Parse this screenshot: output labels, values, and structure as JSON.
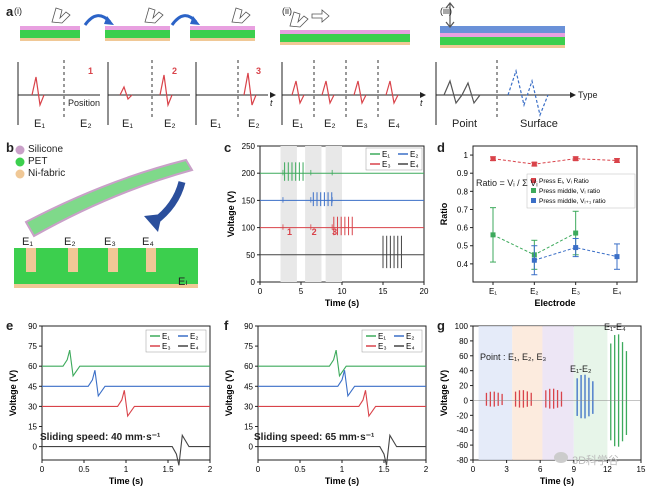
{
  "panel_letters": {
    "a": "a",
    "b": "b",
    "c": "c",
    "d": "d",
    "e": "e",
    "f": "f",
    "g": "g"
  },
  "panel_a": {
    "roman": [
      "(i)",
      "(ii)",
      "(iii)"
    ],
    "press_numbers": [
      "1",
      "2",
      "3"
    ],
    "x_label_position": "Position",
    "x_label_t1": "t",
    "x_label_t2": "t",
    "x_label_type": "Type",
    "electrodes_i": [
      "E₁",
      "E₂",
      "E₁",
      "E₂",
      "E₁",
      "E₂"
    ],
    "electrodes_ii": [
      "E₁",
      "E₂",
      "E₃",
      "E₄"
    ],
    "types": [
      "Point",
      "Surface"
    ]
  },
  "panel_b": {
    "legend": [
      "Silicone",
      "PET",
      "Ni-fabric"
    ],
    "colors": {
      "silicone": "#c9a0c8",
      "pet": "#3ccf4e",
      "ni": "#f0c896"
    },
    "electrodes": [
      "E₁",
      "E₂",
      "E₃",
      "E₄"
    ],
    "el": "Eₗ"
  },
  "panel_c": {
    "ylabel": "Voltage (V)",
    "xlabel": "Time (s)",
    "legend": [
      "E₁",
      "E₂",
      "E₃",
      "E₄"
    ],
    "press_labels": [
      "1",
      "2",
      "3"
    ]
  },
  "panel_d": {
    "ylabel": "Ratio",
    "xlabel": "Electrode",
    "equation": "Ratio = Vᵢ / Σ Vᵢ",
    "legend": [
      "Press Eᵢ, Vᵢ Ratio",
      "Press middle, Vᵢ ratio",
      "Press middle, Vᵢ₊₁ ratio"
    ]
  },
  "panel_e": {
    "ylabel": "Voltage (V)",
    "xlabel": "Time (s)",
    "caption": "Sliding speed: 40 mm·s⁻¹",
    "legend": [
      "E₁",
      "E₂",
      "E₃",
      "E₄"
    ]
  },
  "panel_f": {
    "ylabel": "Voltage (V)",
    "xlabel": "Time (s)",
    "caption": "Sliding speed: 65 mm·s⁻¹",
    "legend": [
      "E₁",
      "E₂",
      "E₃",
      "E₄"
    ]
  },
  "panel_g": {
    "ylabel": "Voltage (V)",
    "xlabel": "Time (s)",
    "point_label": "Point : E₁, E₂, E₃",
    "e1e2": "E₁-E₂",
    "e1e4": "E₁-E₄"
  },
  "watermark": "3D科学谷",
  "chart_data": [
    {
      "type": "line",
      "ylabel": "Voltage (V)",
      "xlabel": "Time (s)",
      "xlim": [
        0,
        20
      ],
      "ylim": [
        0,
        250
      ],
      "x_ticks": [
        0,
        5,
        10,
        15,
        20
      ],
      "y_ticks": [
        0,
        50,
        100,
        150,
        200,
        250
      ],
      "series": [
        {
          "name": "E₁",
          "color": "#3daa5c",
          "baseline": 200
        },
        {
          "name": "E₂",
          "color": "#3b6fc7",
          "baseline": 150
        },
        {
          "name": "E₃",
          "color": "#d9434a",
          "baseline": 100
        },
        {
          "name": "E₄",
          "color": "#444444",
          "baseline": 50
        }
      ]
    },
    {
      "type": "scatter",
      "ylabel": "Ratio",
      "xlabel": "Electrode",
      "ylim": [
        0.3,
        1.05
      ],
      "categories": [
        "E₁",
        "E₂",
        "E₃",
        "E₄"
      ],
      "y_ticks": [
        0.4,
        0.5,
        0.6,
        0.7,
        0.8,
        0.9,
        1.0
      ],
      "series": [
        {
          "name": "Press Eᵢ, Vᵢ Ratio",
          "color": "#d9434a",
          "values": [
            0.98,
            0.95,
            0.98,
            0.97
          ],
          "err": [
            0.01,
            0.01,
            0.01,
            0.01
          ]
        },
        {
          "name": "Press middle, Vᵢ ratio",
          "color": "#3daa5c",
          "values": [
            0.56,
            0.45,
            0.57,
            null
          ],
          "err": [
            0.15,
            0.08,
            0.12,
            0
          ]
        },
        {
          "name": "Press middle, Vᵢ₊₁ ratio",
          "color": "#3b6fc7",
          "values": [
            null,
            0.42,
            0.49,
            0.44
          ],
          "err": [
            0,
            0.08,
            0.05,
            0.07
          ]
        }
      ]
    },
    {
      "type": "line",
      "ylabel": "Voltage (V)",
      "xlabel": "Time (s)",
      "xlim": [
        0,
        2.0
      ],
      "ylim": [
        -10,
        90
      ],
      "x_ticks": [
        0,
        0.5,
        1.0,
        1.5,
        2.0
      ],
      "y_ticks": [
        0,
        15,
        30,
        45,
        60,
        75,
        90
      ],
      "series": [
        {
          "name": "E₁",
          "color": "#3daa5c",
          "baseline": 60,
          "event": 0.3
        },
        {
          "name": "E₂",
          "color": "#3b6fc7",
          "baseline": 45,
          "event": 0.6
        },
        {
          "name": "E₃",
          "color": "#d9434a",
          "baseline": 30,
          "event": 0.95
        },
        {
          "name": "E₄",
          "color": "#444444",
          "baseline": 0,
          "event": 1.6
        }
      ]
    },
    {
      "type": "line",
      "ylabel": "Voltage (V)",
      "xlabel": "Time (s)",
      "xlim": [
        0,
        2.0
      ],
      "ylim": [
        -10,
        90
      ],
      "x_ticks": [
        0,
        0.5,
        1.0,
        1.5,
        2.0
      ],
      "y_ticks": [
        0,
        15,
        30,
        45,
        60,
        75,
        90
      ],
      "series": [
        {
          "name": "E₁",
          "color": "#3daa5c",
          "baseline": 60,
          "event": 0.9
        },
        {
          "name": "E₂",
          "color": "#3b6fc7",
          "baseline": 45,
          "event": 1.0
        },
        {
          "name": "E₃",
          "color": "#d9434a",
          "baseline": 30,
          "event": 1.25
        },
        {
          "name": "E₄",
          "color": "#444444",
          "baseline": 0,
          "event": 1.5
        }
      ]
    },
    {
      "type": "bar",
      "ylabel": "Voltage (V)",
      "xlabel": "Time (s)",
      "xlim": [
        0,
        15
      ],
      "ylim": [
        -80,
        100
      ],
      "x_ticks": [
        0,
        3,
        6,
        9,
        12,
        15
      ],
      "y_ticks": [
        -80,
        -60,
        -40,
        -20,
        0,
        20,
        40,
        60,
        80,
        100
      ],
      "groups": [
        {
          "label": "E₁",
          "color": "#d9434a",
          "amp": 12
        },
        {
          "label": "E₂",
          "color": "#d9434a",
          "amp": 14
        },
        {
          "label": "E₃",
          "color": "#d9434a",
          "amp": 16
        },
        {
          "label": "E₁-E₂",
          "color": "#3b6fc7",
          "amp": 35
        },
        {
          "label": "E₁-E₄",
          "color": "#3daa5c",
          "amp": 90
        }
      ]
    }
  ]
}
